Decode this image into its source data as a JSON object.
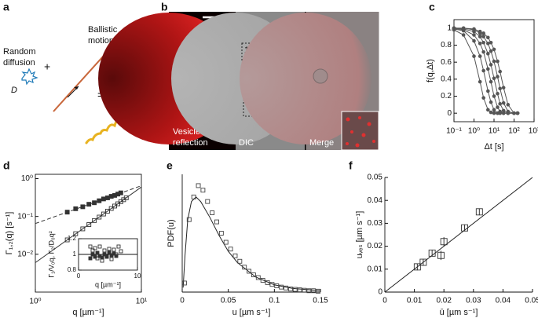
{
  "panel_labels": [
    "a",
    "b",
    "c",
    "d",
    "e",
    "f"
  ],
  "diagram": {
    "random_diffusion": [
      "Random",
      "diffusion"
    ],
    "D": "D",
    "plus": "+",
    "ballistic_motion": [
      "Ballistic",
      "motion"
    ],
    "equals": "="
  },
  "micrograph": {
    "nucleus_labels": [
      "n",
      "n"
    ],
    "region_labels": [
      "1",
      "2",
      "1"
    ],
    "reflection": [
      "Vesicle",
      "reflection"
    ],
    "dic": "DIC",
    "merge": "Merge"
  },
  "chart_data": [
    {
      "type": "line",
      "x_label": "Δt [s]",
      "y_label": "f(q,Δt)",
      "frame": "box",
      "xscale": "log",
      "xlim": [
        0.1,
        1000
      ],
      "ylim": [
        -0.1,
        1.1
      ],
      "xticks": [
        {
          "value": 0.1,
          "label": "10⁻¹"
        },
        {
          "value": 1,
          "label": "10⁰"
        },
        {
          "value": 10,
          "label": "10¹"
        },
        {
          "value": 100,
          "label": "10²"
        },
        {
          "value": 1000,
          "label": "10³"
        }
      ],
      "yticks": [
        0,
        0.2,
        0.4,
        0.6,
        0.8,
        1
      ],
      "x": [
        0.1,
        0.3,
        1,
        2,
        3,
        5,
        7,
        10,
        15,
        20,
        30,
        50,
        100,
        150
      ],
      "series": [
        {
          "color": "#555555",
          "line": "solid",
          "marker": "circle-filled",
          "values": [
            0.98,
            0.92,
            0.67,
            0.37,
            0.18,
            0.04,
            0.01,
            0,
            0,
            0,
            0,
            0,
            0,
            0
          ]
        },
        {
          "color": "#555555",
          "line": "solid",
          "marker": "circle-filled",
          "values": [
            0.99,
            0.97,
            0.85,
            0.67,
            0.5,
            0.26,
            0.13,
            0.04,
            0,
            0,
            0,
            0,
            0,
            0
          ]
        },
        {
          "color": "#555555",
          "line": "solid",
          "marker": "circle-filled",
          "values": [
            1,
            0.98,
            0.92,
            0.82,
            0.72,
            0.52,
            0.37,
            0.2,
            0.07,
            0.02,
            0,
            0,
            0,
            0
          ]
        },
        {
          "color": "#555555",
          "line": "solid",
          "marker": "circle-filled",
          "values": [
            1,
            0.99,
            0.96,
            0.9,
            0.83,
            0.7,
            0.57,
            0.41,
            0.23,
            0.11,
            0.03,
            0,
            0,
            0
          ]
        },
        {
          "color": "#555555",
          "line": "solid",
          "marker": "circle-filled",
          "values": [
            1,
            1,
            0.98,
            0.94,
            0.9,
            0.82,
            0.73,
            0.61,
            0.43,
            0.29,
            0.12,
            0.02,
            0,
            0
          ]
        },
        {
          "color": "#555555",
          "line": "solid",
          "marker": "circle-filled",
          "values": [
            1,
            1,
            0.99,
            0.96,
            0.94,
            0.89,
            0.83,
            0.75,
            0.61,
            0.49,
            0.3,
            0.1,
            0,
            0
          ]
        }
      ]
    },
    {
      "type": "scatter",
      "x_label": "q [µm⁻¹]",
      "y_label": "Γ₁,₂(q) [s⁻¹]",
      "frame": "box",
      "xscale": "log",
      "yscale": "log",
      "xlim": [
        1,
        10
      ],
      "ylim": [
        0.001,
        1.3
      ],
      "xticks": [
        {
          "value": 1,
          "label": "10⁰"
        },
        {
          "value": 10,
          "label": "10¹"
        }
      ],
      "yticks": [
        {
          "value": 0.01,
          "label": "10⁻²"
        },
        {
          "value": 0.1,
          "label": "10⁻¹"
        },
        {
          "value": 1,
          "label": "10⁰"
        }
      ],
      "series": [
        {
          "color": "#333333",
          "line": "dashed",
          "marker": null,
          "x": [
            1,
            10
          ],
          "values": [
            0.065,
            0.65
          ]
        },
        {
          "color": "#333333",
          "line": "solid",
          "marker": null,
          "x": [
            1,
            10
          ],
          "values": [
            0.006,
            0.6
          ]
        },
        {
          "color": "#333333",
          "line": null,
          "marker": "square-filled",
          "x": [
            2.0,
            2.4,
            2.8,
            3.2,
            3.6,
            4.0,
            4.4,
            4.8,
            5.2,
            5.6,
            6.0,
            6.4
          ],
          "values": [
            0.13,
            0.16,
            0.18,
            0.21,
            0.23,
            0.26,
            0.29,
            0.31,
            0.34,
            0.36,
            0.39,
            0.42
          ]
        },
        {
          "color": "#333333",
          "line": null,
          "marker": "square-open",
          "x": [
            2.0,
            2.4,
            2.8,
            3.2,
            3.6,
            4.0,
            4.4,
            4.8,
            5.2,
            5.6,
            6.0,
            6.4,
            6.8,
            7.2
          ],
          "values": [
            0.024,
            0.035,
            0.047,
            0.061,
            0.078,
            0.096,
            0.116,
            0.138,
            0.162,
            0.188,
            0.216,
            0.246,
            0.277,
            0.311
          ]
        }
      ]
    },
    {
      "type": "scatter",
      "x_label": "q [µm⁻¹]",
      "y_label": "Γ₁/V₀q, Γ₂/D₀q²",
      "frame": "box",
      "xlim": [
        0,
        10
      ],
      "ylim": [
        0.8,
        1.2
      ],
      "xticks": [
        0,
        10
      ],
      "yticks": [
        0.8,
        1,
        1.2
      ],
      "reference_line": 1,
      "series": [
        {
          "color": "#333333",
          "line": null,
          "marker": "square-filled",
          "x": [
            2.0,
            2.4,
            2.8,
            3.2,
            3.6,
            4.0,
            4.4,
            4.8,
            5.2,
            5.6,
            6.0,
            6.4
          ],
          "values": [
            0.95,
            1.0,
            0.97,
            1.02,
            0.98,
            0.96,
            1.0,
            0.97,
            1.03,
            0.99,
            1.01,
            0.98
          ]
        },
        {
          "color": "#333333",
          "line": null,
          "marker": "square-open",
          "x": [
            2.0,
            2.4,
            2.8,
            3.2,
            3.6,
            4.0,
            4.4,
            4.8,
            5.2,
            5.6,
            6.0,
            6.4,
            6.8,
            7.2
          ],
          "values": [
            1.1,
            1.05,
            1.08,
            0.95,
            1.1,
            0.92,
            1.05,
            0.97,
            1.07,
            0.94,
            1.06,
            1.0,
            1.1,
            1.04
          ]
        }
      ]
    },
    {
      "type": "scatter",
      "x_label": "u [µm s⁻¹]",
      "y_label": "PDF(u)",
      "frame": "open",
      "xlim": [
        0,
        0.15
      ],
      "ylim": [
        0,
        26
      ],
      "xticks": [
        0,
        0.05,
        0.1,
        0.15
      ],
      "yticks": [],
      "series": [
        {
          "color": "#222222",
          "line": "solid",
          "marker": null,
          "x": [
            0.001,
            0.003,
            0.006,
            0.01,
            0.015,
            0.02,
            0.03,
            0.04,
            0.05,
            0.06,
            0.08,
            0.1,
            0.12,
            0.15
          ],
          "values": [
            1,
            8,
            16,
            20,
            21,
            20,
            16.5,
            12.5,
            9,
            6.5,
            3.3,
            1.6,
            0.8,
            0.3
          ]
        },
        {
          "color": "#444444",
          "line": null,
          "marker": "square-open",
          "x": [
            0.0025,
            0.0075,
            0.0125,
            0.0175,
            0.0225,
            0.0275,
            0.0325,
            0.0375,
            0.0425,
            0.0475,
            0.0525,
            0.0575,
            0.0625,
            0.0675,
            0.0725,
            0.0775,
            0.0825,
            0.0875,
            0.0925,
            0.0975,
            0.1025,
            0.1075,
            0.1125,
            0.1175,
            0.1225,
            0.1275,
            0.1325,
            0.1375,
            0.1425,
            0.1475
          ],
          "values": [
            2,
            16,
            21,
            23.5,
            22.5,
            20,
            17.5,
            15.5,
            13,
            11,
            9.5,
            8,
            6.8,
            5.5,
            4.6,
            3.8,
            3.2,
            2.6,
            2.1,
            1.7,
            1.4,
            1.1,
            0.9,
            0.7,
            0.6,
            0.5,
            0.4,
            0.3,
            0.3,
            0.2
          ]
        }
      ]
    },
    {
      "type": "scatter",
      "x_label": "ū [µm s⁻¹]",
      "y_label": "uᵥₑₛ [µm s⁻¹]",
      "frame": "open",
      "xlim": [
        0,
        0.05
      ],
      "ylim": [
        0,
        0.05
      ],
      "xticks": [
        0,
        0.01,
        0.02,
        0.03,
        0.04,
        0.05
      ],
      "yticks": [
        0,
        0.01,
        0.02,
        0.03,
        0.04,
        0.05
      ],
      "series": [
        {
          "color": "#222222",
          "line": "solid",
          "marker": null,
          "x": [
            0,
            0.05
          ],
          "values": [
            0,
            0.05
          ]
        },
        {
          "color": "#333333",
          "line": null,
          "marker": "square-open",
          "x": [
            0.011,
            0.013,
            0.016,
            0.019,
            0.02,
            0.027,
            0.032
          ],
          "values": [
            0.011,
            0.013,
            0.017,
            0.016,
            0.022,
            0.028,
            0.035
          ],
          "errors": [
            0.0015,
            0.0015,
            0.0015,
            0.002,
            0.002,
            0.0015,
            0.0015
          ]
        }
      ]
    }
  ]
}
